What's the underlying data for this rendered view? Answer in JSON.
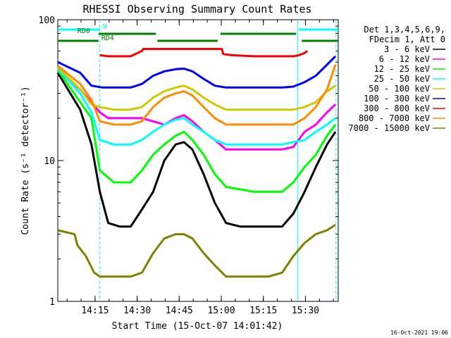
{
  "chart_data": {
    "type": "line",
    "title": "RHESSI Observing Summary Count Rates",
    "xlabel": "Start Time (15-Oct-07 14:01:42)",
    "ylabel": "Count Rate (s⁻¹ detector⁻¹)",
    "yscale": "log",
    "ylim": [
      1,
      100
    ],
    "xlim_minutes": [
      0,
      100
    ],
    "x_tick_labels": [
      "14:15",
      "14:30",
      "14:45",
      "15:00",
      "15:15",
      "15:30"
    ],
    "x_tick_minutes": [
      13.3,
      28.3,
      43.3,
      58.3,
      73.3,
      88.3
    ],
    "y_tick_labels": [
      "1",
      "10",
      "100"
    ],
    "y_tick_values": [
      1,
      10,
      100
    ],
    "legend_header": [
      "Det 1,3,4,5,6,9,",
      "FDecim 1, Att 0"
    ],
    "legend_position": "right",
    "series": [
      {
        "name": "3 - 6 keV",
        "color": "#000000",
        "points": [
          [
            0,
            42
          ],
          [
            8,
            23
          ],
          [
            12,
            13
          ],
          [
            15,
            6
          ],
          [
            18,
            3.6
          ],
          [
            22,
            3.4
          ],
          [
            26,
            3.4
          ],
          [
            30,
            4.5
          ],
          [
            34,
            6
          ],
          [
            38,
            10
          ],
          [
            42,
            13
          ],
          [
            45,
            13.5
          ],
          [
            48,
            12
          ],
          [
            52,
            8
          ],
          [
            56,
            5
          ],
          [
            60,
            3.6
          ],
          [
            65,
            3.4
          ],
          [
            75,
            3.4
          ],
          [
            80,
            3.4
          ],
          [
            84,
            4.2
          ],
          [
            88,
            6
          ],
          [
            92,
            9
          ],
          [
            96,
            13
          ],
          [
            99,
            16
          ]
        ]
      },
      {
        "name": "6 - 12 keV",
        "color": "#ff00ff",
        "points": [
          [
            0,
            43
          ],
          [
            8,
            32
          ],
          [
            15,
            22
          ],
          [
            18,
            20
          ],
          [
            30,
            20
          ],
          [
            38,
            18
          ],
          [
            42,
            20
          ],
          [
            45,
            21
          ],
          [
            48,
            19
          ],
          [
            52,
            16
          ],
          [
            56,
            14
          ],
          [
            60,
            12
          ],
          [
            80,
            12
          ],
          [
            84,
            12.5
          ],
          [
            88,
            16
          ],
          [
            92,
            18
          ],
          [
            96,
            22
          ],
          [
            99,
            25
          ]
        ]
      },
      {
        "name": "12 - 25 keV",
        "color": "#00ff00",
        "points": [
          [
            0,
            44
          ],
          [
            8,
            26
          ],
          [
            12,
            20
          ],
          [
            15,
            8.5
          ],
          [
            20,
            7
          ],
          [
            26,
            7
          ],
          [
            30,
            8.5
          ],
          [
            34,
            11
          ],
          [
            38,
            13
          ],
          [
            42,
            15
          ],
          [
            45,
            16
          ],
          [
            48,
            14
          ],
          [
            52,
            11
          ],
          [
            56,
            8
          ],
          [
            60,
            6.5
          ],
          [
            70,
            6
          ],
          [
            80,
            6
          ],
          [
            84,
            7
          ],
          [
            88,
            9
          ],
          [
            92,
            11
          ],
          [
            96,
            15
          ],
          [
            99,
            18
          ]
        ]
      },
      {
        "name": "25 - 50 keV",
        "color": "#00ffff",
        "points": [
          [
            0,
            45
          ],
          [
            8,
            30
          ],
          [
            12,
            22
          ],
          [
            15,
            14
          ],
          [
            20,
            13
          ],
          [
            26,
            13
          ],
          [
            30,
            14
          ],
          [
            34,
            16
          ],
          [
            38,
            18
          ],
          [
            42,
            19.5
          ],
          [
            45,
            20
          ],
          [
            48,
            18
          ],
          [
            52,
            16
          ],
          [
            56,
            14
          ],
          [
            60,
            13
          ],
          [
            80,
            13
          ],
          [
            84,
            13.5
          ],
          [
            88,
            14
          ],
          [
            92,
            16
          ],
          [
            96,
            18
          ],
          [
            99,
            20
          ]
        ]
      },
      {
        "name": "50 - 100 keV",
        "color": "#d2c800",
        "points": [
          [
            0,
            46
          ],
          [
            8,
            32
          ],
          [
            12,
            25
          ],
          [
            15,
            24
          ],
          [
            20,
            23
          ],
          [
            26,
            23
          ],
          [
            30,
            24
          ],
          [
            34,
            28
          ],
          [
            38,
            31
          ],
          [
            42,
            33
          ],
          [
            45,
            34
          ],
          [
            48,
            32
          ],
          [
            52,
            28
          ],
          [
            56,
            25
          ],
          [
            60,
            23
          ],
          [
            80,
            23
          ],
          [
            84,
            23
          ],
          [
            88,
            24
          ],
          [
            92,
            26
          ],
          [
            96,
            31
          ],
          [
            99,
            34
          ]
        ]
      },
      {
        "name": "100 - 300 keV",
        "color": "#0000ff",
        "points": [
          [
            0,
            50
          ],
          [
            8,
            42
          ],
          [
            12,
            34
          ],
          [
            16,
            33
          ],
          [
            22,
            33
          ],
          [
            26,
            33
          ],
          [
            30,
            35
          ],
          [
            34,
            40
          ],
          [
            38,
            43
          ],
          [
            42,
            44.5
          ],
          [
            45,
            45
          ],
          [
            48,
            43
          ],
          [
            52,
            38
          ],
          [
            56,
            34
          ],
          [
            60,
            33
          ],
          [
            80,
            33
          ],
          [
            84,
            33.5
          ],
          [
            88,
            36
          ],
          [
            92,
            40
          ],
          [
            96,
            48
          ],
          [
            99,
            55
          ]
        ]
      },
      {
        "name": "300 - 800 keV",
        "color": "#ff0000",
        "points": [
          [
            15,
            56
          ],
          [
            18,
            55
          ],
          [
            22,
            55
          ],
          [
            26,
            55
          ],
          [
            30,
            60
          ],
          [
            30.5,
            62
          ],
          [
            58.5,
            62
          ],
          [
            59,
            57
          ],
          [
            62,
            56
          ],
          [
            70,
            55
          ],
          [
            80,
            55
          ],
          [
            84,
            55
          ],
          [
            86,
            56
          ],
          [
            88,
            58
          ],
          [
            89,
            60
          ]
        ]
      },
      {
        "name": "800 - 7000 keV",
        "color": "#ff8c00",
        "points": [
          [
            0,
            47
          ],
          [
            8,
            35
          ],
          [
            12,
            27
          ],
          [
            15,
            19
          ],
          [
            20,
            18
          ],
          [
            26,
            18
          ],
          [
            30,
            19
          ],
          [
            34,
            24
          ],
          [
            38,
            28
          ],
          [
            42,
            30
          ],
          [
            45,
            31
          ],
          [
            48,
            29
          ],
          [
            52,
            24
          ],
          [
            56,
            20
          ],
          [
            60,
            18
          ],
          [
            80,
            18
          ],
          [
            84,
            18
          ],
          [
            88,
            20
          ],
          [
            92,
            24
          ],
          [
            96,
            32
          ],
          [
            99,
            48
          ]
        ]
      },
      {
        "name": "7000 - 15000 keV",
        "color": "#808000",
        "points": [
          [
            0,
            3.2
          ],
          [
            6,
            3
          ],
          [
            7,
            2.5
          ],
          [
            10,
            2.1
          ],
          [
            13,
            1.6
          ],
          [
            15,
            1.5
          ],
          [
            20,
            1.5
          ],
          [
            26,
            1.5
          ],
          [
            30,
            1.6
          ],
          [
            34,
            2.2
          ],
          [
            38,
            2.8
          ],
          [
            42,
            3
          ],
          [
            45,
            3
          ],
          [
            48,
            2.8
          ],
          [
            52,
            2.2
          ],
          [
            56,
            1.8
          ],
          [
            60,
            1.5
          ],
          [
            75,
            1.5
          ],
          [
            80,
            1.6
          ],
          [
            84,
            2.1
          ],
          [
            88,
            2.6
          ],
          [
            92,
            3
          ],
          [
            96,
            3.2
          ],
          [
            99,
            3.5
          ]
        ]
      }
    ],
    "annotations": {
      "bars": [
        {
          "label": "N",
          "color": "#00ffff",
          "segments": [
            [
              0,
              15
            ],
            [
              86,
              100
            ]
          ]
        },
        {
          "label": "RD0",
          "color": "#008000",
          "segments": [
            [
              14.5,
              35
            ],
            [
              58,
              85
            ]
          ]
        },
        {
          "label": "RD4",
          "color": "#008000",
          "segments": [
            [
              0,
              14.5
            ],
            [
              35.5,
              57
            ],
            [
              87,
              100
            ]
          ]
        }
      ],
      "solid_vlines_minutes": [
        85.5
      ],
      "dashed_vlines_minutes": [
        15,
        99.2
      ]
    },
    "grid": false,
    "footer_date": "16-Oct-2021 19:06"
  }
}
